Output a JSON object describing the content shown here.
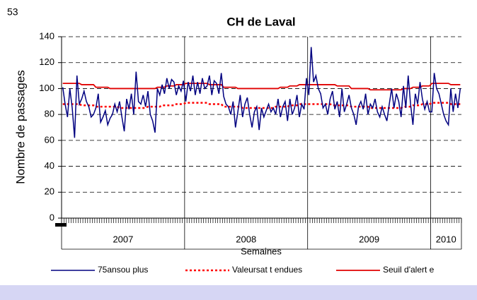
{
  "chart_data": {
    "type": "line",
    "corner_label": "53",
    "title": "CH de Laval",
    "y_label": "Nombre de passages",
    "x_label": "Semaines",
    "ylim": [
      0,
      140
    ],
    "yticks": [
      0,
      20,
      40,
      60,
      80,
      100,
      120,
      140
    ],
    "grid": true,
    "year_groups": [
      {
        "label": "2007",
        "weeks": 52
      },
      {
        "label": "2008",
        "weeks": 52
      },
      {
        "label": "2009",
        "weeks": 52
      },
      {
        "label": "2010",
        "weeks": 13
      }
    ],
    "series": [
      {
        "name": "75ansou plus",
        "color": "#000080",
        "style": "solid",
        "values": [
          101,
          88,
          78,
          100,
          85,
          62,
          110,
          88,
          92,
          98,
          90,
          86,
          78,
          80,
          85,
          96,
          74,
          78,
          83,
          72,
          77,
          80,
          88,
          82,
          90,
          78,
          67,
          92,
          84,
          96,
          80,
          113,
          90,
          88,
          95,
          86,
          98,
          80,
          75,
          66,
          100,
          95,
          103,
          96,
          108,
          100,
          107,
          105,
          95,
          102,
          98,
          106,
          90,
          105,
          98,
          110,
          95,
          105,
          96,
          108,
          100,
          102,
          110,
          95,
          106,
          104,
          96,
          112,
          94,
          88,
          86,
          80,
          90,
          70,
          82,
          95,
          78,
          88,
          93,
          80,
          70,
          82,
          86,
          68,
          85,
          78,
          83,
          88,
          82,
          85,
          80,
          92,
          78,
          86,
          90,
          75,
          92,
          80,
          85,
          95,
          78,
          88,
          84,
          108,
          95,
          132,
          105,
          110,
          100,
          96,
          85,
          88,
          80,
          92,
          98,
          84,
          90,
          78,
          100,
          82,
          88,
          95,
          85,
          80,
          72,
          86,
          90,
          84,
          96,
          80,
          88,
          85,
          92,
          82,
          78,
          86,
          80,
          75,
          88,
          100,
          85,
          96,
          90,
          78,
          102,
          85,
          110,
          88,
          72,
          96,
          88,
          105,
          92,
          84,
          90,
          82,
          82,
          112,
          100,
          96,
          88,
          80,
          75,
          72,
          100,
          82,
          96,
          85,
          100
        ]
      },
      {
        "name": "Valeursat t endues",
        "color": "#ff0000",
        "style": "dotted",
        "values": [
          88,
          88,
          88,
          88,
          88,
          88,
          88,
          88,
          87,
          87,
          87,
          87,
          87,
          87,
          86,
          86,
          86,
          86,
          86,
          86,
          86,
          86,
          86,
          86,
          85,
          85,
          85,
          85,
          85,
          85,
          85,
          85,
          85,
          85,
          85,
          85,
          86,
          86,
          86,
          86,
          86,
          86,
          87,
          87,
          87,
          87,
          87,
          87,
          88,
          88,
          88,
          88,
          89,
          89,
          89,
          89,
          89,
          89,
          89,
          89,
          89,
          89,
          88,
          88,
          88,
          88,
          88,
          88,
          86,
          86,
          86,
          86,
          86,
          86,
          86,
          86,
          85,
          85,
          85,
          85,
          85,
          85,
          85,
          85,
          85,
          85,
          85,
          85,
          85,
          85,
          86,
          86,
          86,
          86,
          86,
          86,
          87,
          87,
          87,
          87,
          88,
          88,
          88,
          88,
          88,
          88,
          88,
          88,
          88,
          88,
          88,
          88,
          88,
          88,
          87,
          87,
          87,
          87,
          87,
          87,
          87,
          87,
          86,
          86,
          86,
          86,
          86,
          86,
          86,
          86,
          85,
          85,
          85,
          85,
          85,
          85,
          85,
          85,
          85,
          85,
          85,
          85,
          85,
          85,
          86,
          86,
          86,
          86,
          87,
          87,
          87,
          87,
          88,
          88,
          88,
          88,
          89,
          89,
          89,
          89,
          89,
          89,
          89,
          89,
          88,
          88,
          88,
          88,
          88
        ]
      },
      {
        "name": "Seuil d'alert e",
        "color": "#e00000",
        "style": "solid",
        "values": [
          104,
          104,
          104,
          104,
          104,
          104,
          104,
          104,
          103,
          103,
          103,
          103,
          103,
          103,
          101,
          101,
          101,
          101,
          101,
          101,
          100,
          100,
          100,
          100,
          100,
          100,
          100,
          100,
          100,
          100,
          100,
          100,
          100,
          100,
          100,
          100,
          100,
          100,
          100,
          100,
          101,
          101,
          101,
          101,
          102,
          102,
          102,
          102,
          103,
          103,
          103,
          103,
          104,
          104,
          104,
          104,
          104,
          104,
          104,
          104,
          104,
          104,
          103,
          103,
          103,
          103,
          103,
          103,
          101,
          101,
          101,
          101,
          101,
          101,
          100,
          100,
          100,
          100,
          100,
          100,
          100,
          100,
          100,
          100,
          100,
          100,
          100,
          100,
          100,
          100,
          100,
          100,
          101,
          101,
          101,
          101,
          102,
          102,
          102,
          102,
          103,
          103,
          103,
          103,
          103,
          103,
          103,
          103,
          103,
          103,
          103,
          103,
          103,
          103,
          103,
          103,
          102,
          102,
          102,
          102,
          102,
          102,
          100,
          100,
          100,
          100,
          100,
          100,
          100,
          100,
          99,
          99,
          99,
          99,
          99,
          99,
          99,
          99,
          99,
          99,
          99,
          99,
          99,
          99,
          100,
          100,
          100,
          100,
          101,
          101,
          101,
          101,
          102,
          102,
          102,
          102,
          104,
          104,
          104,
          104,
          104,
          104,
          104,
          104,
          103,
          103,
          103,
          103,
          103
        ]
      }
    ]
  }
}
